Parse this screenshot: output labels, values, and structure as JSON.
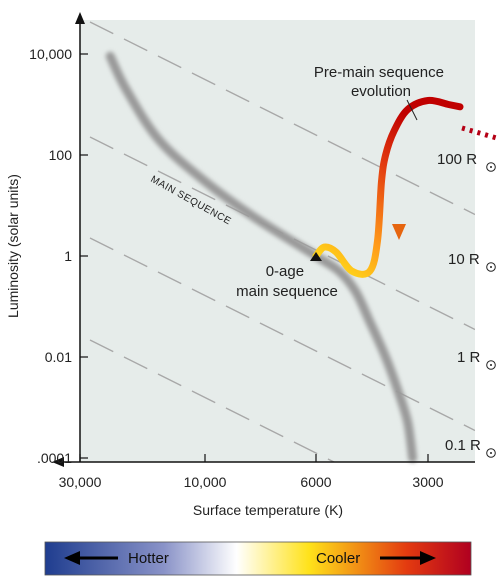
{
  "chart_data": {
    "type": "line",
    "title": "",
    "xlabel": "Surface temperature (K)",
    "ylabel": "Luminosity (solar units)",
    "x_axis": {
      "direction": "reversed",
      "ticks": [
        {
          "value": 30000,
          "label": "30,000"
        },
        {
          "value": 10000,
          "label": "10,000"
        },
        {
          "value": 6000,
          "label": "6000"
        },
        {
          "value": 3000,
          "label": "3000"
        }
      ]
    },
    "y_axis": {
      "scale": "log",
      "ticks": [
        {
          "value": 10000,
          "label": "10,000"
        },
        {
          "value": 100,
          "label": "100"
        },
        {
          "value": 1,
          "label": "1"
        },
        {
          "value": 0.01,
          "label": "0.01"
        },
        {
          "value": 0.0001,
          "label": ".0001"
        }
      ]
    },
    "series": [
      {
        "name": "",
        "style": "gray band",
        "color": "#9a9a9a",
        "points": [
          [
            23000,
            9000
          ],
          [
            20000,
            2000
          ],
          [
            15000,
            200
          ],
          [
            10000,
            30
          ],
          [
            8000,
            6
          ],
          [
            6000,
            1
          ],
          [
            5200,
            0.5
          ],
          [
            4700,
            0.2
          ],
          [
            4300,
            0.05
          ],
          [
            3900,
            0.01
          ],
          [
            3600,
            0.002
          ],
          [
            3400,
            0.0005
          ],
          [
            3300,
            0.0001
          ]
        ]
      },
      {
        "name": "",
        "style": "gradient track",
        "colors": [
          "#ffe21a",
          "#ff9a1a",
          "#e23a10",
          "#c00000"
        ],
        "points": [
          [
            6000,
            1
          ],
          [
            5700,
            1.5
          ],
          [
            5300,
            1.2
          ],
          [
            4800,
            0.5
          ],
          [
            4300,
            0.5
          ],
          [
            4100,
            2
          ],
          [
            4000,
            30
          ],
          [
            3900,
            100
          ],
          [
            3700,
            300
          ],
          [
            3400,
            800
          ],
          [
            3000,
            1200
          ],
          [
            2600,
            1000
          ],
          [
            2400,
            900
          ]
        ]
      }
    ],
    "annotations": [
      {
        "text": "MAIN SEQUENCE"
      },
      {
        "lines": [
          "Pre-main sequence",
          "evolution"
        ]
      },
      {
        "lines": [
          "0-age",
          "main sequence"
        ],
        "marker": "triangle"
      }
    ],
    "radius_lines": [
      {
        "value": "100",
        "unit": "R"
      },
      {
        "value": "10",
        "unit": "R"
      },
      {
        "value": "1",
        "unit": "R"
      },
      {
        "value": "0.1",
        "unit": "R"
      }
    ],
    "legend_bar": {
      "left_label": "Hotter",
      "right_label": "Cooler",
      "colors": [
        "#1f3d8f",
        "#8a93c8",
        "#ffffff",
        "#ffe21a",
        "#e33a10",
        "#b00020"
      ]
    },
    "colors": {
      "plot_background": "#e6ecea",
      "dashed_lines": "#a8a8a8"
    }
  }
}
